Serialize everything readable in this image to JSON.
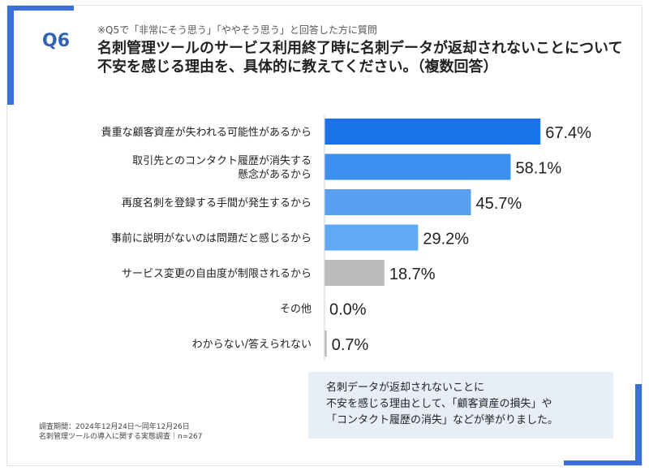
{
  "question": {
    "label": "Q6",
    "note": "※Q5で「非常にそう思う」「ややそう思う」と回答した方に質問",
    "title": "名刺管理ツールのサービス利用終了時に名刺データが返却されないことについて不安を感じる理由を、具体的に教えてください。（複数回答）"
  },
  "chart_data": {
    "type": "bar",
    "orientation": "horizontal",
    "categories": [
      [
        "貴重な顧客資産が失われる可能性があるから"
      ],
      [
        "取引先とのコンタクト履歴が消失する",
        "懸念があるから"
      ],
      [
        "再度名刺を登録する手間が発生するから"
      ],
      [
        "事前に説明がないのは問題だと感じるから"
      ],
      [
        "サービス変更の自由度が制限されるから"
      ],
      [
        "その他"
      ],
      [
        "わからない/答えられない"
      ]
    ],
    "values": [
      67.4,
      58.1,
      45.7,
      29.2,
      18.7,
      0.0,
      0.7
    ],
    "value_labels": [
      "67.4%",
      "58.1%",
      "45.7%",
      "29.2%",
      "18.7%",
      "0.0%",
      "0.7%"
    ],
    "colors": [
      "#1a73e8",
      "#3d8ff0",
      "#57a0f2",
      "#62a9f5",
      "#bcbcbc",
      "#bcbcbc",
      "#bcbcbc"
    ],
    "xlim": [
      0,
      100
    ],
    "unit": "%"
  },
  "summary": [
    "名刺データが返却されないことに",
    "不安を感じる理由として、「顧客資産の損失」や",
    "「コンタクト履歴の消失」などが挙がりました。"
  ],
  "footer": {
    "period": "調査期間：2024年12月24日〜同年12月26日",
    "survey": "名刺管理ツールの導入に関する実態調査｜n=267"
  }
}
